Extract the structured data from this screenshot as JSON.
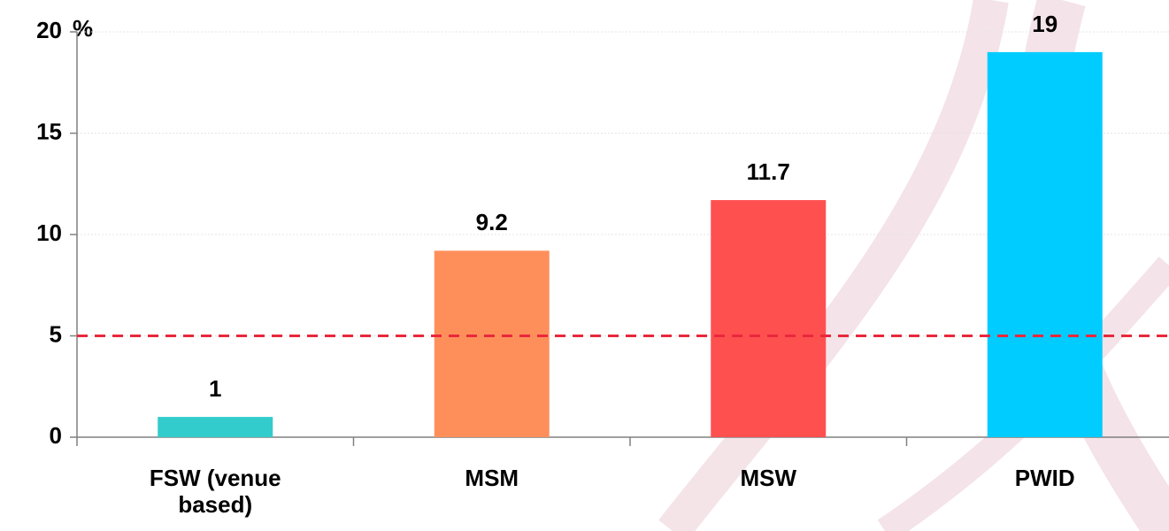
{
  "chart_data": {
    "type": "bar",
    "y_unit": "%",
    "categories": [
      "FSW (venue based)",
      "MSM",
      "MSW",
      "PWID"
    ],
    "values": [
      1,
      9.2,
      11.7,
      19
    ],
    "colors": [
      "#33cccc",
      "#ff8f5a",
      "#ff5050",
      "#00ccff"
    ],
    "ylim": [
      0,
      20
    ],
    "yticks": [
      0,
      5,
      10,
      15,
      20
    ],
    "grid": true,
    "reference_line": {
      "value": 5,
      "color": "#e8283c",
      "dashed": true
    }
  }
}
